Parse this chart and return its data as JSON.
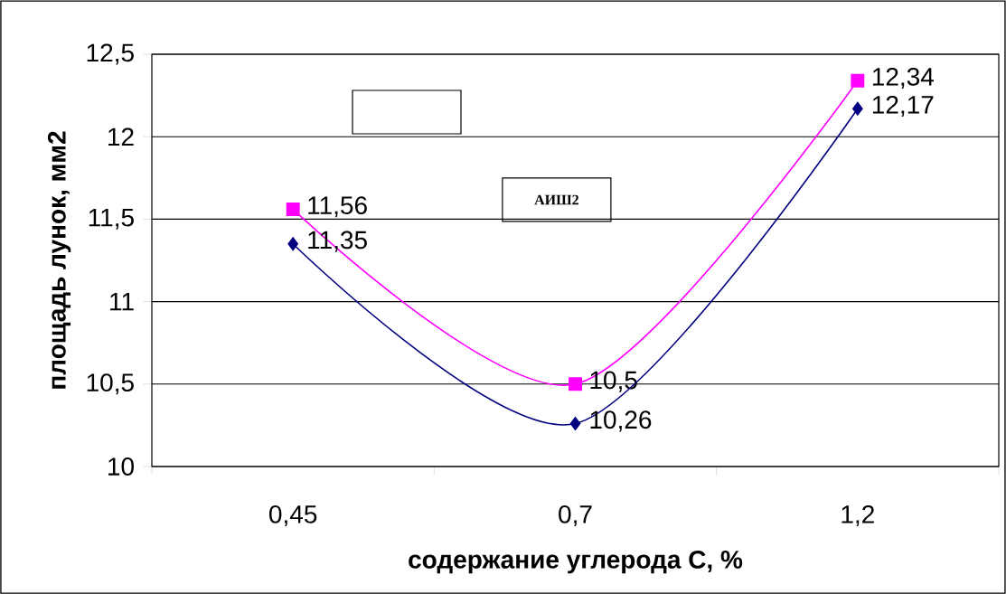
{
  "chart_data": {
    "type": "line",
    "xlabel": "содержание углерода С, %",
    "ylabel": "площадь лунок, мм2",
    "categories": [
      "0,45",
      "0,7",
      "1,2"
    ],
    "ylim": [
      10,
      12.5
    ],
    "yticks": [
      10,
      {
        "value": 10.5,
        "label": "10,5"
      },
      11,
      {
        "value": 11.5,
        "label": "11,5"
      },
      12,
      {
        "value": 12.5,
        "label": "12,5"
      }
    ],
    "grid": "y",
    "annotations": [
      "АИШ2"
    ],
    "series": [
      {
        "color": "#ff00ff",
        "marker": "square",
        "values": [
          11.56,
          10.5,
          12.34
        ],
        "value_labels": [
          "11,56",
          "10,5",
          "12,34"
        ]
      },
      {
        "color": "#000080",
        "marker": "diamond",
        "values": [
          11.35,
          10.26,
          12.17
        ],
        "value_labels": [
          "11,35",
          "10,26",
          "12,17"
        ]
      }
    ]
  }
}
